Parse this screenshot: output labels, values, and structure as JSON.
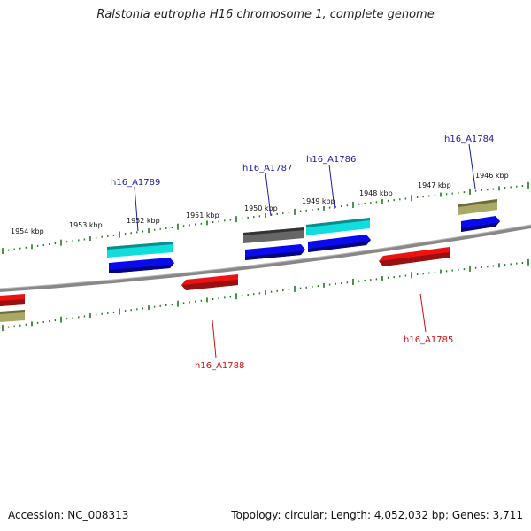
{
  "title": "Ralstonia eutropha H16 chromosome 1, complete genome",
  "footer": {
    "accession": "Accession: NC_008313",
    "stats": "Topology: circular; Length: 4,052,032 bp; Genes: 3,711"
  },
  "colors": {
    "backbone": "#888888",
    "ticks": "#1f7a1f",
    "red": "#ee1111",
    "blue": "#0a0aee",
    "cyan": "#11dddd",
    "gray": "#666666",
    "olive": "#aaa866",
    "label_blue": "#1a1aaa",
    "label_red": "#cc1111"
  },
  "kbp_ticks": [
    "1954 kbp",
    "1953 kbp",
    "1952 kbp",
    "1951 kbp",
    "1950 kbp",
    "1949 kbp",
    "1948 kbp",
    "1947 kbp",
    "1946 kbp"
  ],
  "gene_labels": [
    {
      "text": "h16_A1789",
      "color": "blue"
    },
    {
      "text": "h16_A1787",
      "color": "blue"
    },
    {
      "text": "h16_A1786",
      "color": "blue"
    },
    {
      "text": "h16_A1784",
      "color": "blue"
    },
    {
      "text": "h16_A1788",
      "color": "red"
    },
    {
      "text": "h16_A1785",
      "color": "red"
    }
  ]
}
